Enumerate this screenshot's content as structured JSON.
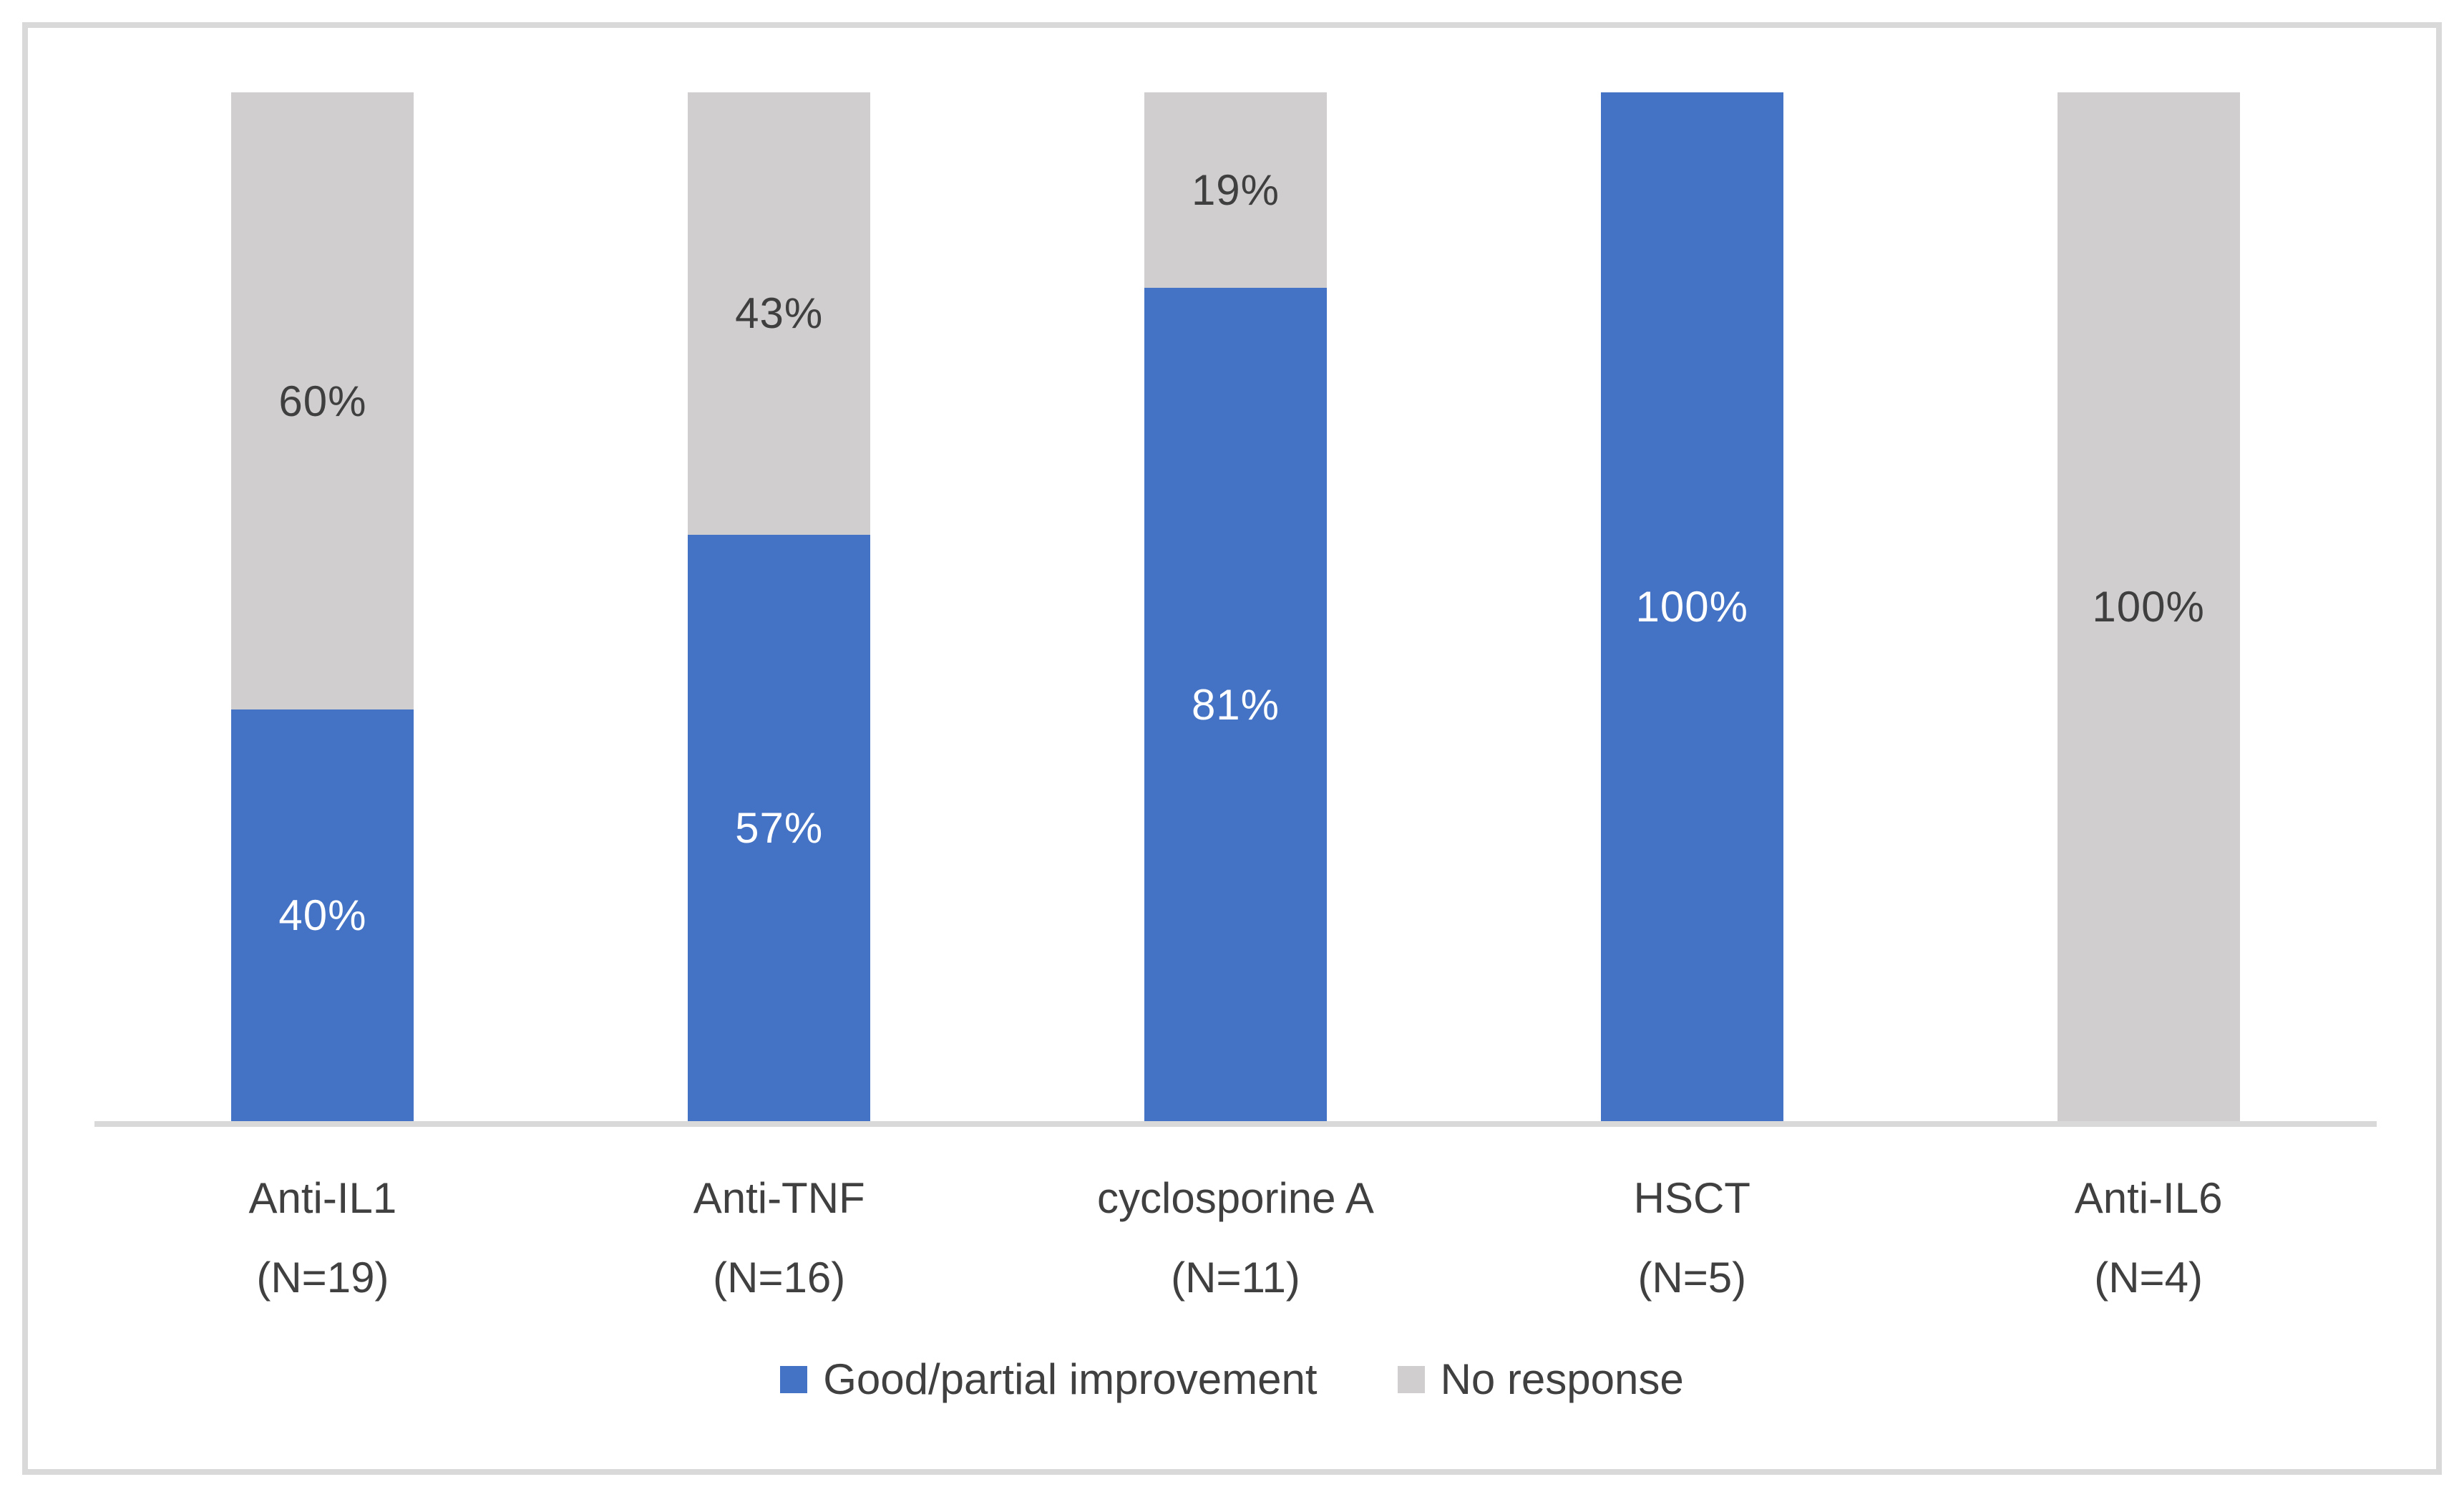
{
  "chart_data": {
    "type": "bar",
    "stacked": true,
    "percent_stacked": true,
    "title": "",
    "xlabel": "",
    "ylabel": "",
    "ylim": [
      0,
      100
    ],
    "grid": false,
    "legend_position": "bottom",
    "axis_color": "#D9D9D9",
    "frame_border_color": "#D9D9D9",
    "categories": [
      "Anti-IL1",
      "Anti-TNF",
      "cyclosporine A",
      "HSCT",
      "Anti-IL6"
    ],
    "category_sublabels": [
      "(N=19)",
      "(N=16)",
      "(N=11)",
      "(N=5)",
      "(N=4)"
    ],
    "series": [
      {
        "name": "Good/partial improvement",
        "color": "#4472C4",
        "label_color": "#FFFFFF",
        "values": [
          40,
          57,
          81,
          100,
          0
        ],
        "data_labels": [
          "40%",
          "57%",
          "81%",
          "100%",
          ""
        ]
      },
      {
        "name": "No response",
        "color": "#D0CECE",
        "label_color": "#3F3F3F",
        "values": [
          60,
          43,
          19,
          0,
          100
        ],
        "data_labels": [
          "60%",
          "43%",
          "19%",
          "",
          "100%"
        ]
      }
    ]
  }
}
